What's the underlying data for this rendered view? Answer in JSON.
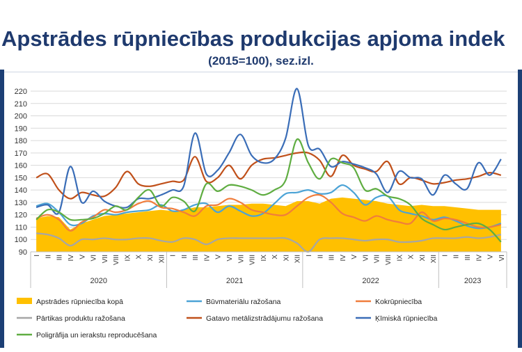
{
  "header": {
    "title": "Apstrādes rūpniecības produkcijas apjoma indek",
    "subtitle": "(2015=100), sez.izl."
  },
  "colors": {
    "frame": "#1c3f75",
    "title": "#1f3a6e"
  },
  "chart_data": {
    "type": "line",
    "ylim": [
      90,
      220
    ],
    "yticks": [
      90,
      100,
      110,
      120,
      130,
      140,
      150,
      160,
      170,
      180,
      190,
      200,
      210,
      220
    ],
    "grid": true,
    "legend_position": "bottom",
    "categories": [
      "I",
      "II",
      "III",
      "IV",
      "V",
      "VI",
      "VII",
      "VIII",
      "IX",
      "X",
      "XI",
      "XII",
      "I",
      "II",
      "III",
      "IV",
      "V",
      "VI",
      "VII",
      "VIII",
      "IX",
      "X",
      "XI",
      "XII",
      "I",
      "II",
      "III",
      "IV",
      "V",
      "VI",
      "VII",
      "VIII",
      "IX",
      "X",
      "XI",
      "XII",
      "I",
      "II",
      "III",
      "IV",
      "V",
      "VI"
    ],
    "years": [
      {
        "label": "2020",
        "start": 0,
        "count": 12
      },
      {
        "label": "2021",
        "start": 12,
        "count": 12
      },
      {
        "label": "2022",
        "start": 24,
        "count": 12
      },
      {
        "label": "2023",
        "start": 36,
        "count": 6
      }
    ],
    "series": [
      {
        "name": "Apstrādes rūpniecība kopā",
        "kind": "area",
        "color": "#ffc000",
        "values": [
          117,
          119,
          118,
          108,
          113,
          116,
          119,
          120,
          121,
          122,
          123,
          124,
          123,
          124,
          126,
          126,
          127,
          128,
          128,
          129,
          129,
          128,
          127,
          131,
          131,
          129,
          133,
          134,
          133,
          132,
          131,
          129,
          128,
          127,
          128,
          127,
          127,
          126,
          125,
          124,
          124,
          124
        ]
      },
      {
        "name": "Būvmateriālu ražošana",
        "kind": "line",
        "color": "#4ba3d6",
        "values": [
          127,
          129,
          122,
          112,
          113,
          119,
          121,
          120,
          122,
          123,
          124,
          128,
          123,
          124,
          128,
          129,
          122,
          127,
          123,
          119,
          121,
          129,
          137,
          138,
          140,
          137,
          138,
          144,
          138,
          128,
          134,
          135,
          124,
          121,
          119,
          116,
          118,
          115,
          111,
          109,
          110,
          113
        ]
      },
      {
        "name": "Kokrūpniecība",
        "kind": "line",
        "color": "#f07d3c",
        "values": [
          117,
          120,
          116,
          107,
          114,
          118,
          124,
          122,
          124,
          129,
          131,
          126,
          125,
          122,
          119,
          127,
          128,
          133,
          130,
          124,
          122,
          120,
          120,
          127,
          134,
          136,
          130,
          121,
          118,
          115,
          119,
          116,
          114,
          113,
          122,
          115,
          117,
          116,
          113,
          110,
          110,
          112
        ]
      },
      {
        "name": "Pārtikas produktu ražošana",
        "kind": "line",
        "color": "#a6a6a6",
        "values": [
          105,
          104,
          101,
          95,
          100,
          100,
          101,
          100,
          100,
          101,
          101,
          99,
          98,
          101,
          100,
          96,
          100,
          101,
          101,
          101,
          101,
          101,
          101,
          97,
          90,
          100,
          101,
          101,
          100,
          99,
          100,
          100,
          98,
          98,
          99,
          101,
          101,
          101,
          102,
          101,
          102,
          104
        ]
      },
      {
        "name": "Gatavo metālizstrādājumu ražošana",
        "kind": "line",
        "color": "#c0501a",
        "values": [
          150,
          153,
          140,
          133,
          138,
          136,
          135,
          142,
          155,
          145,
          143,
          145,
          147,
          148,
          167,
          147,
          150,
          160,
          149,
          160,
          165,
          166,
          168,
          170,
          170,
          164,
          151,
          168,
          160,
          157,
          155,
          163,
          145,
          150,
          148,
          145,
          146,
          148,
          149,
          151,
          154,
          152
        ]
      },
      {
        "name": "Ķīmiskā rūpniecība",
        "kind": "line",
        "color": "#3a6db7",
        "values": [
          126,
          128,
          122,
          159,
          130,
          139,
          131,
          127,
          126,
          133,
          133,
          136,
          140,
          143,
          186,
          153,
          156,
          170,
          185,
          168,
          162,
          165,
          182,
          222,
          176,
          173,
          159,
          163,
          161,
          158,
          153,
          138,
          155,
          150,
          149,
          136,
          152,
          145,
          141,
          162,
          152,
          165
        ]
      },
      {
        "name": "Poligrāfija un ierakstu reproducēšana",
        "kind": "line",
        "color": "#5fad41",
        "values": [
          116,
          124,
          122,
          116,
          116,
          117,
          121,
          127,
          124,
          134,
          140,
          127,
          134,
          131,
          123,
          145,
          139,
          144,
          143,
          140,
          136,
          140,
          148,
          181,
          162,
          149,
          165,
          162,
          158,
          140,
          141,
          135,
          133,
          128,
          117,
          112,
          108,
          110,
          112,
          113,
          108,
          98
        ]
      }
    ]
  }
}
